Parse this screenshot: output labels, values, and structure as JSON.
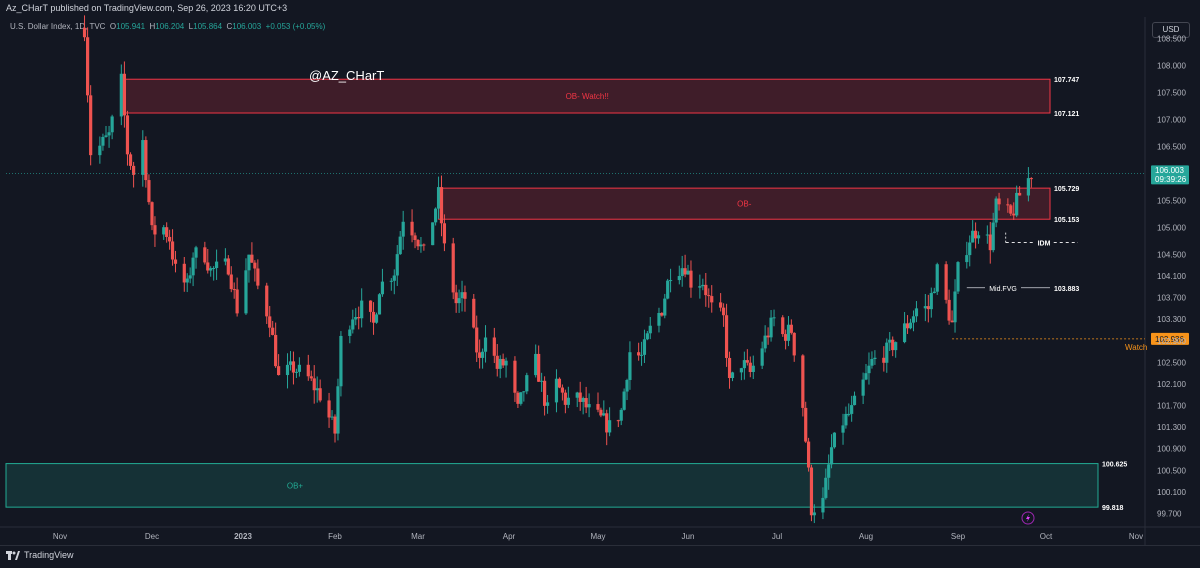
{
  "header": {
    "published": "Az_CHarT published on TradingView.com, Sep 26, 2023 16:20 UTC+3"
  },
  "legend": {
    "symbol": "U.S. Dollar Index, 1D, TVC",
    "o_label": "O",
    "o": "105.941",
    "h_label": "H",
    "h": "106.204",
    "l_label": "L",
    "l": "105.864",
    "c_label": "C",
    "c": "106.003",
    "change": "+0.053 (+0.05%)"
  },
  "currency": "USD",
  "handle": "@AZ_CHarT",
  "brand": "TradingView",
  "colors": {
    "bg": "#131722",
    "up": "#26a69a",
    "down": "#ef5350",
    "ob_bear": "#f23645",
    "ob_bull": "#22ab94",
    "watch": "#f7931a"
  },
  "chart_data": {
    "type": "candlestick",
    "ylim": [
      99.45,
      108.9
    ],
    "y_ticks": [
      "108.500",
      "108.000",
      "107.500",
      "107.000",
      "106.500",
      "106.000",
      "105.500",
      "105.000",
      "104.500",
      "104.100",
      "103.700",
      "103.300",
      "102.900",
      "102.500",
      "102.100",
      "101.700",
      "101.300",
      "100.900",
      "100.500",
      "100.100",
      "99.700"
    ],
    "x_ticks": [
      "Nov",
      "Dec",
      "2023",
      "Feb",
      "Mar",
      "Apr",
      "May",
      "Jun",
      "Jul",
      "Aug",
      "Sep",
      "Oct",
      "Nov"
    ],
    "last_price": "106.003",
    "countdown": "09:39:26",
    "price_path": [
      [
        "2022-11-09",
        108.7
      ],
      [
        "2022-11-11",
        106.4
      ],
      [
        "2022-11-14",
        106.5
      ],
      [
        "2022-11-17",
        106.7
      ],
      [
        "2022-11-21",
        107.7
      ],
      [
        "2022-11-23",
        106.4
      ],
      [
        "2022-11-25",
        106.0
      ],
      [
        "2022-11-28",
        106.6
      ],
      [
        "2022-12-01",
        104.9
      ],
      [
        "2022-12-05",
        105.0
      ],
      [
        "2022-12-07",
        104.8
      ],
      [
        "2022-12-09",
        104.2
      ],
      [
        "2022-12-13",
        103.9
      ],
      [
        "2022-12-15",
        104.5
      ],
      [
        "2022-12-19",
        104.5
      ],
      [
        "2022-12-21",
        104.2
      ],
      [
        "2022-12-27",
        104.3
      ],
      [
        "2022-12-30",
        103.5
      ],
      [
        "2023-01-03",
        104.5
      ],
      [
        "2023-01-06",
        103.9
      ],
      [
        "2023-01-10",
        103.3
      ],
      [
        "2023-01-13",
        102.2
      ],
      [
        "2023-01-18",
        102.4
      ],
      [
        "2023-01-23",
        102.2
      ],
      [
        "2023-01-27",
        101.9
      ],
      [
        "2023-02-01",
        101.2
      ],
      [
        "2023-02-03",
        102.9
      ],
      [
        "2023-02-07",
        103.4
      ],
      [
        "2023-02-10",
        103.5
      ],
      [
        "2023-02-14",
        103.2
      ],
      [
        "2023-02-16",
        103.9
      ],
      [
        "2023-02-21",
        104.2
      ],
      [
        "2023-02-24",
        105.2
      ],
      [
        "2023-02-28",
        104.9
      ],
      [
        "2023-03-03",
        104.5
      ],
      [
        "2023-03-08",
        105.6
      ],
      [
        "2023-03-10",
        104.6
      ],
      [
        "2023-03-14",
        103.6
      ],
      [
        "2023-03-17",
        103.7
      ],
      [
        "2023-03-22",
        102.5
      ],
      [
        "2023-03-24",
        103.1
      ],
      [
        "2023-03-28",
        102.4
      ],
      [
        "2023-03-31",
        102.5
      ],
      [
        "2023-04-04",
        101.6
      ],
      [
        "2023-04-06",
        102.0
      ],
      [
        "2023-04-10",
        102.5
      ],
      [
        "2023-04-14",
        101.6
      ],
      [
        "2023-04-17",
        102.1
      ],
      [
        "2023-04-20",
        101.8
      ],
      [
        "2023-04-25",
        101.8
      ],
      [
        "2023-04-28",
        101.6
      ],
      [
        "2023-05-03",
        101.4
      ],
      [
        "2023-05-05",
        101.3
      ],
      [
        "2023-05-09",
        101.6
      ],
      [
        "2023-05-12",
        102.7
      ],
      [
        "2023-05-16",
        102.6
      ],
      [
        "2023-05-19",
        103.1
      ],
      [
        "2023-05-23",
        103.5
      ],
      [
        "2023-05-26",
        104.2
      ],
      [
        "2023-05-31",
        104.3
      ],
      [
        "2023-06-02",
        104.0
      ],
      [
        "2023-06-06",
        104.0
      ],
      [
        "2023-06-09",
        103.5
      ],
      [
        "2023-06-13",
        103.3
      ],
      [
        "2023-06-15",
        102.1
      ],
      [
        "2023-06-19",
        102.5
      ],
      [
        "2023-06-22",
        102.3
      ],
      [
        "2023-06-26",
        102.8
      ],
      [
        "2023-06-30",
        103.3
      ],
      [
        "2023-07-03",
        103.0
      ],
      [
        "2023-07-06",
        103.1
      ],
      [
        "2023-07-10",
        101.7
      ],
      [
        "2023-07-13",
        99.8
      ],
      [
        "2023-07-17",
        99.9
      ],
      [
        "2023-07-20",
        100.9
      ],
      [
        "2023-07-24",
        101.4
      ],
      [
        "2023-07-27",
        101.6
      ],
      [
        "2023-07-31",
        102.1
      ],
      [
        "2023-08-03",
        102.5
      ],
      [
        "2023-08-08",
        102.7
      ],
      [
        "2023-08-11",
        102.9
      ],
      [
        "2023-08-15",
        103.2
      ],
      [
        "2023-08-18",
        103.5
      ],
      [
        "2023-08-22",
        103.5
      ],
      [
        "2023-08-25",
        104.2
      ],
      [
        "2023-08-30",
        103.2
      ],
      [
        "2023-09-01",
        104.2
      ],
      [
        "2023-09-05",
        104.8
      ],
      [
        "2023-09-08",
        105.0
      ],
      [
        "2023-09-12",
        104.7
      ],
      [
        "2023-09-14",
        105.4
      ],
      [
        "2023-09-19",
        105.2
      ],
      [
        "2023-09-22",
        105.6
      ],
      [
        "2023-09-26",
        106.0
      ]
    ],
    "zones": [
      {
        "label": "OB-  Watch!!",
        "top": 107.747,
        "bottom": 107.121,
        "from": "2022-11-22",
        "top_label": "107.747",
        "bottom_label": "107.121",
        "kind": "bear"
      },
      {
        "label": "OB-",
        "top": 105.729,
        "bottom": 105.153,
        "from": "2023-03-08",
        "top_label": "105.729",
        "bottom_label": "105.153",
        "kind": "bear"
      },
      {
        "label": "OB+",
        "top": 100.625,
        "bottom": 99.818,
        "from": "2022-10-20",
        "top_label": "100.625",
        "bottom_label": "99.818",
        "kind": "bull"
      }
    ],
    "levels": [
      {
        "label": "IDM",
        "price": 104.72,
        "from": "2023-09-20",
        "to": "2023-10-04",
        "style": "dashed"
      },
      {
        "label": "Mid.FVG",
        "price": 103.883,
        "value_label": "103.883",
        "from": "2023-09-04",
        "style": "solid"
      },
      {
        "label": "Watch",
        "price": 102.936,
        "value_label": "102.936",
        "from": "2023-08-30",
        "style": "dotted"
      }
    ]
  }
}
